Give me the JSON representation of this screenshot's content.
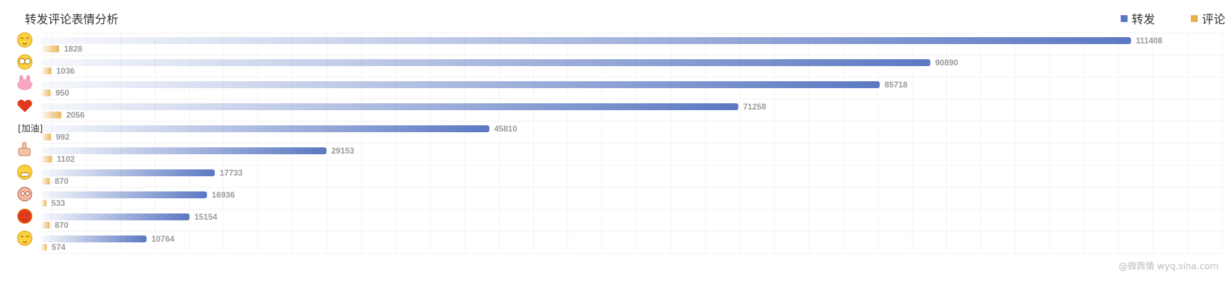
{
  "chart_data": {
    "type": "bar",
    "orientation": "horizontal",
    "title": "转发评论表情分析",
    "categories": [
      "emoji-shy-kiss",
      "emoji-glasses",
      "emoji-pink-bunny",
      "emoji-heart",
      "[加油]",
      "emoji-thumbs-up",
      "emoji-grin",
      "emoji-crying-pig",
      "emoji-heart-face",
      "emoji-cover-mouth"
    ],
    "category_labels": [
      "",
      "",
      "",
      "",
      "[加油]",
      "",
      "",
      "",
      "",
      ""
    ],
    "series": [
      {
        "name": "转发",
        "color": "#5b78c2",
        "values": [
          111408,
          90890,
          85718,
          71258,
          45810,
          29153,
          17733,
          16936,
          15154,
          10764
        ]
      },
      {
        "name": "评论",
        "color": "#e8b04f",
        "values": [
          1828,
          1036,
          950,
          2056,
          992,
          1102,
          870,
          533,
          870,
          574
        ]
      }
    ],
    "legend_position": "top-right",
    "grid": true,
    "data_labels": true
  },
  "watermark": "@微舆情 wyq.sina.com"
}
